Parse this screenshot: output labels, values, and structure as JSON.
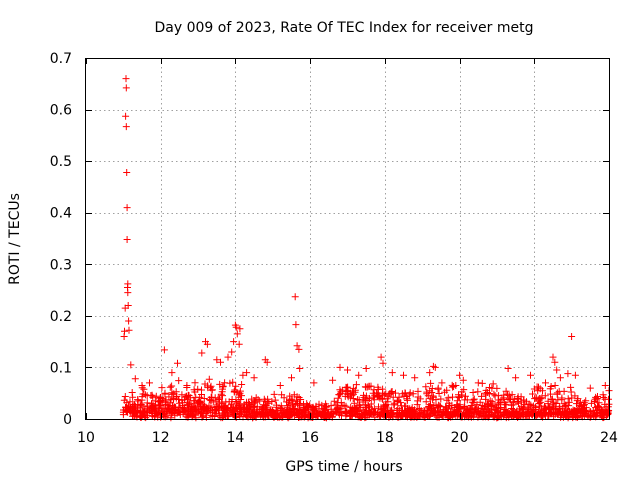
{
  "chart_data": {
    "type": "scatter",
    "title": "Day 009 of 2023, Rate Of TEC Index for receiver metg",
    "xlabel": "GPS time / hours",
    "ylabel": "ROTI / TECUs",
    "xlim": [
      10,
      24
    ],
    "ylim": [
      0,
      0.7
    ],
    "xticks": [
      10,
      12,
      14,
      16,
      18,
      20,
      22,
      24
    ],
    "xtick_labels": [
      "10",
      "12",
      "14",
      "16",
      "18",
      "20",
      "22",
      "24"
    ],
    "yticks": [
      0,
      0.1,
      0.2,
      0.3,
      0.4,
      0.5,
      0.6,
      0.7
    ],
    "ytick_labels": [
      "0",
      "0.1",
      "0.2",
      "0.3",
      "0.4",
      "0.5",
      "0.6",
      "0.7"
    ],
    "grid": true,
    "marker": "+",
    "color": "#ff0000",
    "series": [
      {
        "name": "metg",
        "x": [
          11.02,
          11.03,
          11.05,
          11.06,
          11.07,
          11.08,
          11.08,
          11.09,
          11.1,
          11.1,
          11.11,
          11.12,
          11.12,
          11.13,
          11.14,
          11.15,
          11.2,
          11.32,
          11.5,
          11.7,
          12.1,
          12.3,
          12.45,
          12.7,
          13.1,
          13.2,
          13.25,
          13.5,
          13.6,
          13.8,
          13.9,
          13.95,
          14.0,
          14.02,
          14.05,
          14.1,
          14.12,
          14.2,
          14.3,
          14.5,
          14.8,
          14.85,
          15.2,
          15.5,
          15.6,
          15.62,
          15.65,
          15.7,
          15.72,
          16.1,
          16.6,
          16.8,
          17.0,
          17.3,
          17.5,
          17.9,
          17.95,
          18.2,
          18.5,
          18.8,
          19.2,
          19.3,
          19.35,
          19.9,
          20.0,
          20.1,
          20.5,
          20.9,
          21.3,
          21.5,
          21.9,
          22.3,
          22.5,
          22.55,
          22.6,
          22.7,
          22.9,
          23.0,
          23.1,
          23.5,
          23.9,
          24.0
        ],
        "y": [
          0.16,
          0.17,
          0.215,
          0.587,
          0.66,
          0.642,
          0.567,
          0.478,
          0.41,
          0.348,
          0.255,
          0.245,
          0.262,
          0.22,
          0.19,
          0.172,
          0.105,
          0.078,
          0.065,
          0.07,
          0.134,
          0.09,
          0.108,
          0.065,
          0.128,
          0.15,
          0.145,
          0.115,
          0.11,
          0.12,
          0.13,
          0.15,
          0.182,
          0.178,
          0.165,
          0.145,
          0.175,
          0.085,
          0.09,
          0.08,
          0.115,
          0.11,
          0.065,
          0.08,
          0.237,
          0.183,
          0.142,
          0.135,
          0.098,
          0.07,
          0.075,
          0.1,
          0.095,
          0.085,
          0.098,
          0.12,
          0.108,
          0.09,
          0.085,
          0.08,
          0.09,
          0.102,
          0.1,
          0.065,
          0.085,
          0.075,
          0.07,
          0.068,
          0.098,
          0.08,
          0.085,
          0.07,
          0.12,
          0.11,
          0.095,
          0.08,
          0.088,
          0.16,
          0.085,
          0.06,
          0.065,
          0.055
        ]
      }
    ],
    "background_band": {
      "description_free": true,
      "x_start": 11.0,
      "x_end": 24.0,
      "segments": [
        {
          "x0": 11.0,
          "x1": 11.3,
          "y_base": 0.02,
          "y_peak": 0.06
        },
        {
          "x0": 11.3,
          "x1": 12.0,
          "y_base": 0.015,
          "y_peak": 0.07
        },
        {
          "x0": 12.0,
          "x1": 13.0,
          "y_base": 0.02,
          "y_peak": 0.075
        },
        {
          "x0": 13.0,
          "x1": 14.2,
          "y_base": 0.02,
          "y_peak": 0.08
        },
        {
          "x0": 14.2,
          "x1": 15.0,
          "y_base": 0.012,
          "y_peak": 0.045
        },
        {
          "x0": 15.0,
          "x1": 15.8,
          "y_base": 0.01,
          "y_peak": 0.05
        },
        {
          "x0": 15.8,
          "x1": 16.6,
          "y_base": 0.008,
          "y_peak": 0.03
        },
        {
          "x0": 16.6,
          "x1": 18.0,
          "y_base": 0.012,
          "y_peak": 0.07
        },
        {
          "x0": 18.0,
          "x1": 19.0,
          "y_base": 0.01,
          "y_peak": 0.06
        },
        {
          "x0": 19.0,
          "x1": 20.0,
          "y_base": 0.012,
          "y_peak": 0.07
        },
        {
          "x0": 20.0,
          "x1": 21.0,
          "y_base": 0.012,
          "y_peak": 0.07
        },
        {
          "x0": 21.0,
          "x1": 22.0,
          "y_base": 0.01,
          "y_peak": 0.055
        },
        {
          "x0": 22.0,
          "x1": 23.0,
          "y_base": 0.012,
          "y_peak": 0.07
        },
        {
          "x0": 23.0,
          "x1": 24.0,
          "y_base": 0.01,
          "y_peak": 0.05
        }
      ],
      "points_per_hour": 140
    }
  }
}
